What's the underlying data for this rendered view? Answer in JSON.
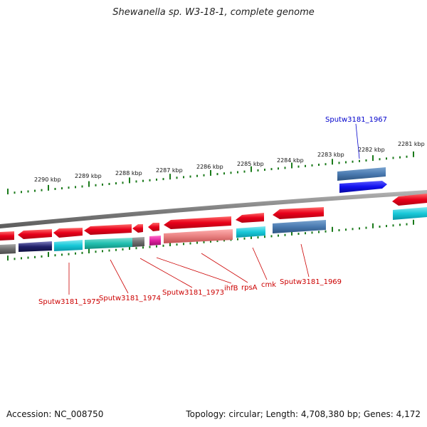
{
  "title": "Shewanella sp. W3-18-1, complete genome",
  "scale_labels": [
    "2290 kbp",
    "2289 kbp",
    "2288 kbp",
    "2287 kbp",
    "2286 kbp",
    "2285 kbp",
    "2284 kbp",
    "2283 kbp",
    "2282 kbp",
    "2281 kbp"
  ],
  "gene_labels": [
    {
      "text": "Sputw3181_1967",
      "color": "#0000cc"
    },
    {
      "text": "Sputw3181_1975",
      "color": "#cc0000"
    },
    {
      "text": "Sputw3181_1974",
      "color": "#cc0000"
    },
    {
      "text": "Sputw3181_1973",
      "color": "#cc0000"
    },
    {
      "text": "ihfB",
      "color": "#cc0000"
    },
    {
      "text": "rpsA",
      "color": "#cc0000"
    },
    {
      "text": "cmk",
      "color": "#cc0000"
    },
    {
      "text": "Sputw3181_1969",
      "color": "#cc0000"
    }
  ],
  "colors": {
    "backbone": "#808080",
    "tick": "#1a7a1a",
    "cds_red": "#e8001a",
    "cds_blue": "#1010ee",
    "steelblue": "#4a7ab0",
    "cyan": "#18c8d8",
    "teal": "#22c0b0",
    "gray": "#707070",
    "magenta": "#e020a0",
    "pink": "#e88080",
    "navy": "#20206a"
  },
  "footer": {
    "accession": "Accession: NC_008750",
    "stats": "Topology: circular; Length: 4,708,380 bp; Genes: 4,172"
  }
}
